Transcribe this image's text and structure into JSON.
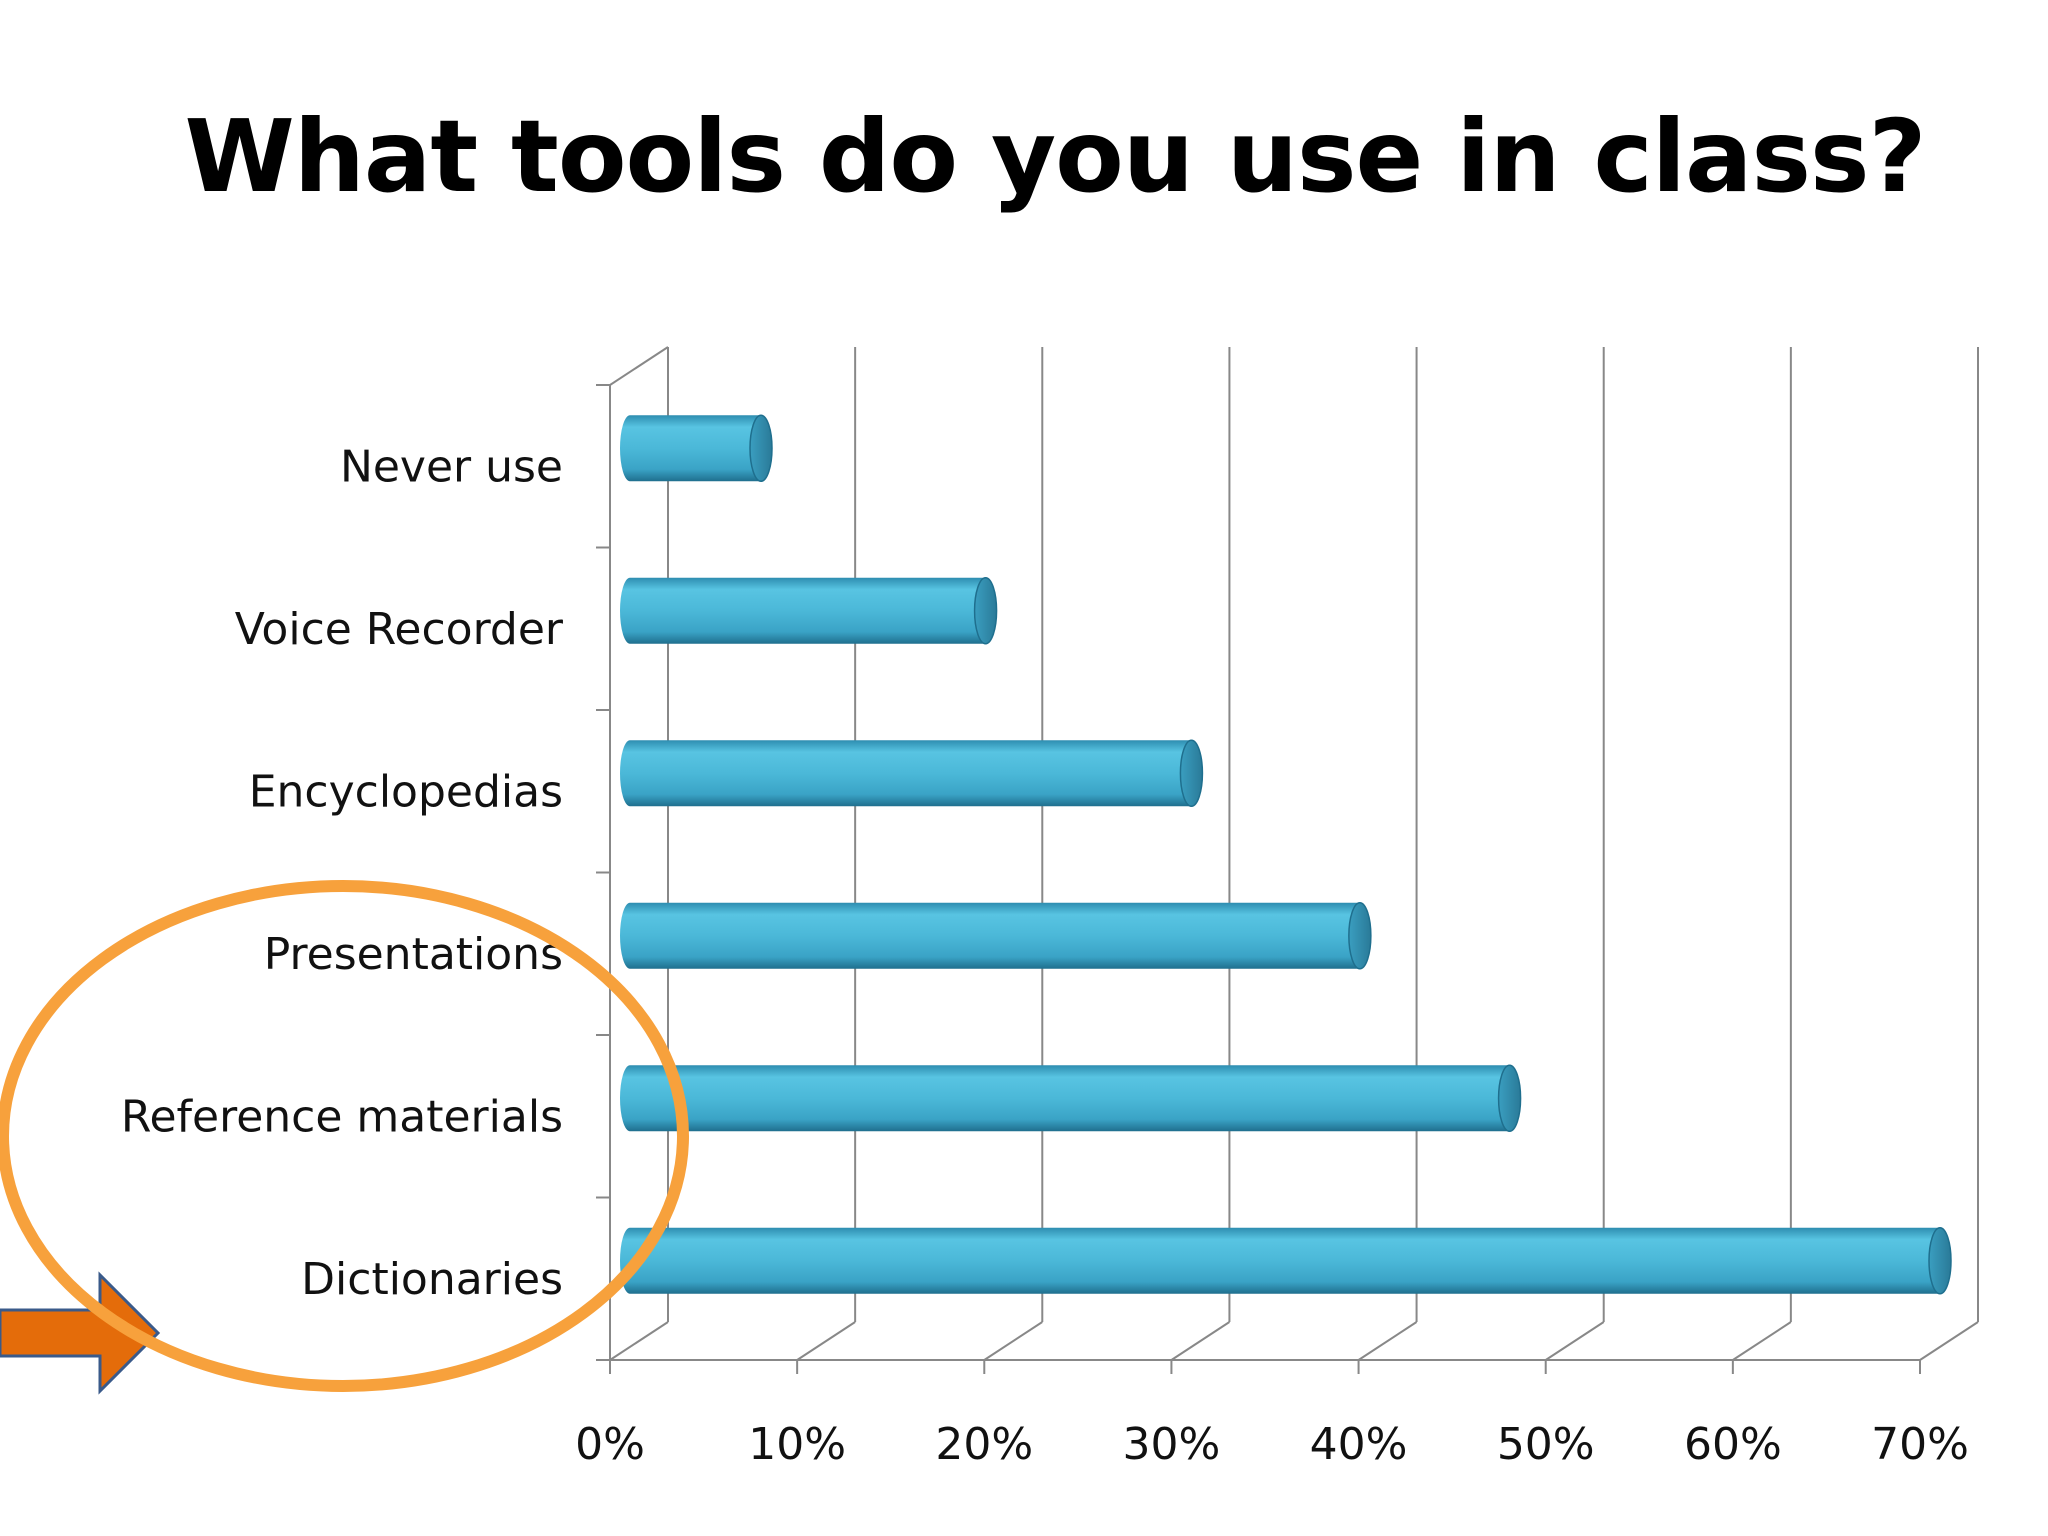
{
  "slide": {
    "title": "What tools do you use in class?"
  },
  "chart_data": {
    "type": "bar",
    "orientation": "horizontal",
    "style": "3d-cylinder",
    "title": "What tools do you use in class?",
    "categories": [
      "Dictionaries",
      "Reference materials",
      "Presentations",
      "Encyclopedias",
      "Voice Recorder",
      "Never use"
    ],
    "values": [
      70,
      47,
      39,
      30,
      19,
      7
    ],
    "x_ticks": [
      "0%",
      "10%",
      "20%",
      "30%",
      "40%",
      "50%",
      "60%",
      "70%"
    ],
    "xlim": [
      0,
      70
    ],
    "xlabel": "",
    "ylabel": "",
    "grid": true,
    "bar_color": "#4BB8D8",
    "highlight": {
      "shape": "ellipse",
      "color": "#F7A13C",
      "arrow_color": "#E46C0A"
    }
  }
}
